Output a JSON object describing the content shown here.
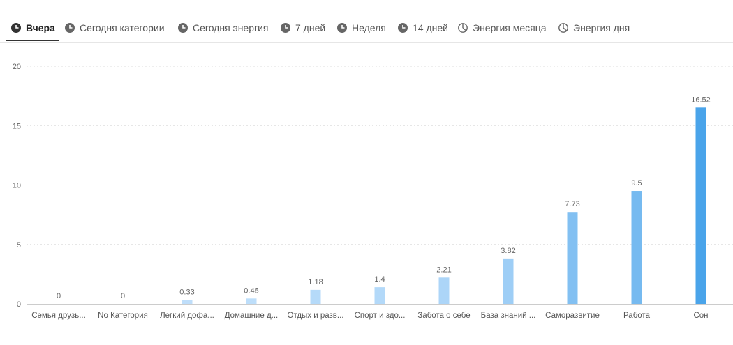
{
  "tabs": [
    {
      "label": "Вчера",
      "icon": "clock-icon",
      "active": true
    },
    {
      "label": "Сегодня категории",
      "icon": "clock-icon",
      "active": false
    },
    {
      "label": "Сегодня энергия",
      "icon": "clock-icon",
      "active": false
    },
    {
      "label": "7 дней",
      "icon": "clock-icon",
      "active": false
    },
    {
      "label": "Неделя",
      "icon": "clock-icon",
      "active": false
    },
    {
      "label": "14 дней",
      "icon": "clock-icon",
      "active": false
    },
    {
      "label": "Энергия месяца",
      "icon": "pie-clock-icon",
      "active": false
    },
    {
      "label": "Энергия дня",
      "icon": "pie-clock-icon",
      "active": false
    }
  ],
  "chart_data": {
    "type": "bar",
    "categories": [
      "Семья друзь...",
      "No Категория",
      "Легкий дофа...",
      "Домашние д...",
      "Отдых и разв...",
      "Спорт и здо...",
      "Забота о себе",
      "База знаний ...",
      "Саморазвитие",
      "Работа",
      "Сон"
    ],
    "values": [
      0,
      0,
      0.33,
      0.45,
      1.18,
      1.4,
      2.21,
      3.82,
      7.73,
      9.5,
      16.52
    ],
    "data_labels": [
      "0",
      "0",
      "0.33",
      "0.45",
      "1.18",
      "1.4",
      "2.21",
      "3.82",
      "7.73",
      "9.5",
      "16.52"
    ],
    "ylim": [
      0,
      20
    ],
    "yticks": [
      0,
      5,
      10,
      15,
      20
    ],
    "grid": true,
    "colors": {
      "low": "#c4e1fb",
      "high": "#4aa4ea",
      "grid": "#dddddd",
      "axis": "#cccccc"
    }
  }
}
